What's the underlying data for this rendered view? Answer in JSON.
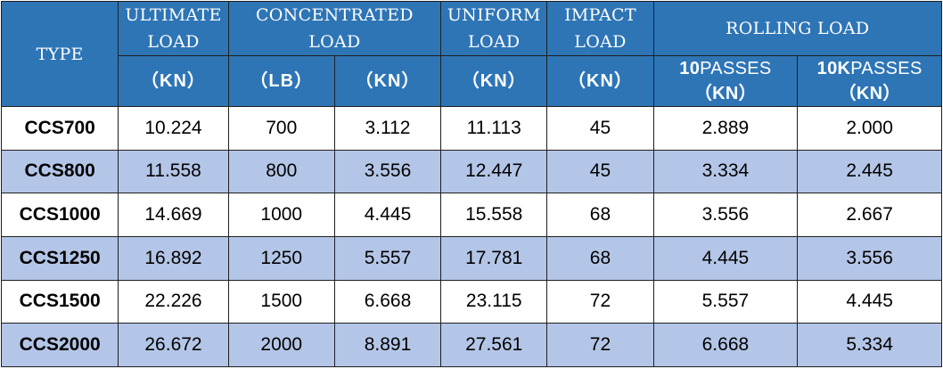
{
  "header": {
    "type": "TYPE",
    "ultimate": "ULTIMATE LOAD",
    "concentrated": "CONCENTRATED LOAD",
    "uniform": "UNIFORM LOAD",
    "impact": "IMPACT LOAD",
    "rolling": "ROLLING LOAD",
    "unit_kn": "（KN）",
    "unit_lb": "（LB）",
    "rolling_10_num": "10",
    "rolling_10_text": "PASSES",
    "rolling_10k_num": "10K",
    "rolling_10k_text": "PASSES",
    "rolling_unit": "（KN）"
  },
  "rows": [
    {
      "type": "CCS700",
      "ultimate": "10.224",
      "conc_lb": "700",
      "conc_kn": "3.112",
      "uniform": "11.113",
      "impact": "45",
      "roll_10": "2.889",
      "roll_10k": "2.000"
    },
    {
      "type": "CCS800",
      "ultimate": "11.558",
      "conc_lb": "800",
      "conc_kn": "3.556",
      "uniform": "12.447",
      "impact": "45",
      "roll_10": "3.334",
      "roll_10k": "2.445"
    },
    {
      "type": "CCS1000",
      "ultimate": "14.669",
      "conc_lb": "1000",
      "conc_kn": "4.445",
      "uniform": "15.558",
      "impact": "68",
      "roll_10": "3.556",
      "roll_10k": "2.667"
    },
    {
      "type": "CCS1250",
      "ultimate": "16.892",
      "conc_lb": "1250",
      "conc_kn": "5.557",
      "uniform": "17.781",
      "impact": "68",
      "roll_10": "4.445",
      "roll_10k": "3.556"
    },
    {
      "type": "CCS1500",
      "ultimate": "22.226",
      "conc_lb": "1500",
      "conc_kn": "6.668",
      "uniform": "23.115",
      "impact": "72",
      "roll_10": "5.557",
      "roll_10k": "4.445"
    },
    {
      "type": "CCS2000",
      "ultimate": "26.672",
      "conc_lb": "2000",
      "conc_kn": "8.891",
      "uniform": "27.561",
      "impact": "72",
      "roll_10": "6.668",
      "roll_10k": "5.334"
    }
  ],
  "colors": {
    "header_bg": "#2e75b6",
    "alt_row_bg": "#b4c6e7",
    "row_bg": "#ffffff",
    "border": "#1f1f1f"
  }
}
